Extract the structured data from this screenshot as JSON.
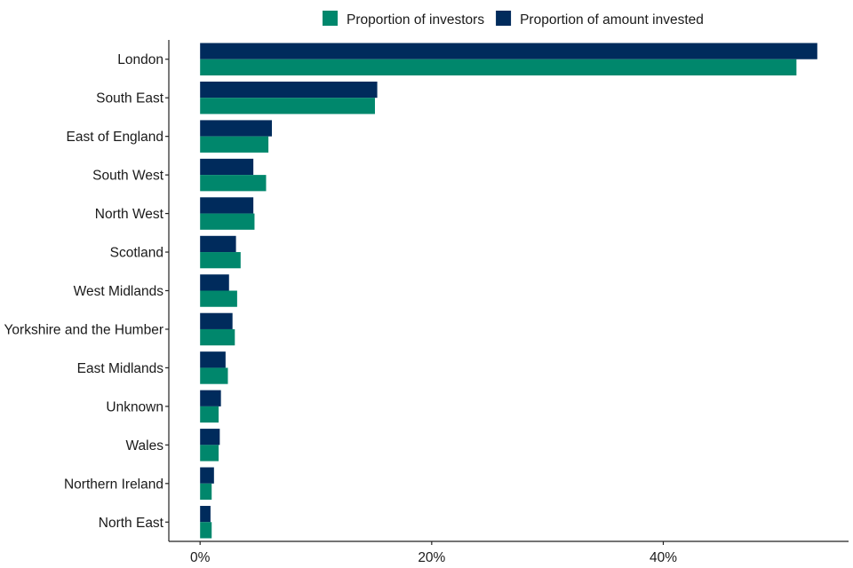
{
  "chart_data": {
    "type": "bar",
    "orientation": "horizontal",
    "title": "",
    "xlabel": "",
    "ylabel": "",
    "categories": [
      "London",
      "South East",
      "East of England",
      "South West",
      "North West",
      "Scotland",
      "West Midlands",
      "Yorkshire and the Humber",
      "East Midlands",
      "Unknown",
      "Wales",
      "Northern Ireland",
      "North East"
    ],
    "series": [
      {
        "name": "Proportion of investors",
        "color": "#00876C",
        "values": [
          51.5,
          15.1,
          5.9,
          5.7,
          4.7,
          3.5,
          3.2,
          3.0,
          2.4,
          1.6,
          1.6,
          1.0,
          1.0
        ]
      },
      {
        "name": "Proportion of amount invested",
        "color": "#002B5C",
        "values": [
          53.3,
          15.3,
          6.2,
          4.6,
          4.6,
          3.1,
          2.5,
          2.8,
          2.2,
          1.8,
          1.7,
          1.2,
          0.9
        ]
      }
    ],
    "x_ticks": [
      "0%",
      "20%",
      "40%"
    ],
    "x_tick_values": [
      0,
      20,
      40
    ],
    "xlim": [
      -2.7,
      56
    ],
    "grid": false,
    "legend_position": "top"
  }
}
